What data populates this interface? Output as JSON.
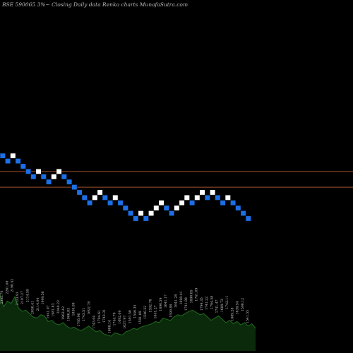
{
  "chart_data": {
    "type": "renko",
    "title": "BSE 590065 3%~  Closing Daily data  Renko  charts MunafaSutra.com",
    "colors": {
      "background": "#000000",
      "up_brick": "#ffffff",
      "down_brick": "#1c6fe6",
      "reference_line": "#a0522d",
      "volume_fill": "#0b2a0b",
      "volume_outline": "#1f6b1f",
      "label": "#cccccc"
    },
    "bricks": [
      {
        "dir": "down",
        "level": 0
      },
      {
        "dir": "down",
        "level": 1
      },
      {
        "dir": "up",
        "level": 0
      },
      {
        "dir": "down",
        "level": 1
      },
      {
        "dir": "down",
        "level": 2
      },
      {
        "dir": "down",
        "level": 3
      },
      {
        "dir": "down",
        "level": 4
      },
      {
        "dir": "up",
        "level": 3
      },
      {
        "dir": "down",
        "level": 4
      },
      {
        "dir": "down",
        "level": 5
      },
      {
        "dir": "up",
        "level": 4
      },
      {
        "dir": "up",
        "level": 3
      },
      {
        "dir": "down",
        "level": 4
      },
      {
        "dir": "down",
        "level": 5
      },
      {
        "dir": "down",
        "level": 6
      },
      {
        "dir": "down",
        "level": 7
      },
      {
        "dir": "down",
        "level": 8
      },
      {
        "dir": "down",
        "level": 9
      },
      {
        "dir": "up",
        "level": 8
      },
      {
        "dir": "up",
        "level": 7
      },
      {
        "dir": "down",
        "level": 8
      },
      {
        "dir": "down",
        "level": 9
      },
      {
        "dir": "up",
        "level": 8
      },
      {
        "dir": "down",
        "level": 9
      },
      {
        "dir": "down",
        "level": 10
      },
      {
        "dir": "down",
        "level": 11
      },
      {
        "dir": "down",
        "level": 12
      },
      {
        "dir": "up",
        "level": 11
      },
      {
        "dir": "down",
        "level": 12
      },
      {
        "dir": "up",
        "level": 11
      },
      {
        "dir": "up",
        "level": 10
      },
      {
        "dir": "up",
        "level": 9
      },
      {
        "dir": "down",
        "level": 10
      },
      {
        "dir": "down",
        "level": 11
      },
      {
        "dir": "up",
        "level": 10
      },
      {
        "dir": "up",
        "level": 9
      },
      {
        "dir": "up",
        "level": 8
      },
      {
        "dir": "down",
        "level": 9
      },
      {
        "dir": "up",
        "level": 8
      },
      {
        "dir": "up",
        "level": 7
      },
      {
        "dir": "down",
        "level": 8
      },
      {
        "dir": "up",
        "level": 7
      },
      {
        "dir": "down",
        "level": 8
      },
      {
        "dir": "down",
        "level": 9
      },
      {
        "dir": "up",
        "level": 8
      },
      {
        "dir": "down",
        "level": 9
      },
      {
        "dir": "down",
        "level": 10
      },
      {
        "dir": "down",
        "level": 11
      },
      {
        "dir": "down",
        "level": 12
      }
    ],
    "reference_lines": [
      {
        "level": 3.5
      },
      {
        "level": 6.5
      }
    ],
    "volume_values": [
      100,
      78,
      88,
      84,
      96,
      76,
      70,
      72,
      66,
      60,
      58,
      64,
      62,
      52,
      54,
      48,
      46,
      50,
      44,
      40,
      42,
      38,
      36,
      40,
      44,
      38,
      34,
      36,
      30,
      28,
      26,
      32,
      30,
      28,
      34,
      36,
      40,
      38,
      42,
      44,
      46,
      48,
      52,
      50,
      58,
      56,
      54,
      60,
      64,
      62,
      66,
      70,
      72,
      68,
      64,
      66,
      60,
      54,
      58,
      62,
      56,
      50,
      54,
      48,
      52,
      46,
      50,
      44,
      48,
      40
    ],
    "brick_labels": [
      "2335.70",
      "2261.08",
      "2190.52",
      "2123.91",
      "2197.27",
      "2114.59",
      "2050.41",
      "2114.04",
      "1999.50",
      "1941.07",
      "1981.83",
      "2040.23",
      "1963.42",
      "1906.83",
      "1850.69",
      "1795.96",
      "1743.51",
      "1692.78",
      "1743.04",
      "1794.61",
      "1743.31",
      "1688.14",
      "1744.70",
      "1692.09",
      "1637.97",
      "1591.50",
      "1546.35",
      "1591.89",
      "1546.22",
      "1592.76",
      "1641.27",
      "1690.59",
      "1641.17",
      "1590.88",
      "1641.28",
      "1690.41",
      "1741.88",
      "1690.65",
      "1741.09",
      "1794.35",
      "1741.22",
      "1794.58",
      "1741.47",
      "1689.73",
      "1742.11",
      "1689.28",
      "1639.54",
      "1590.12",
      "1541.55"
    ]
  }
}
